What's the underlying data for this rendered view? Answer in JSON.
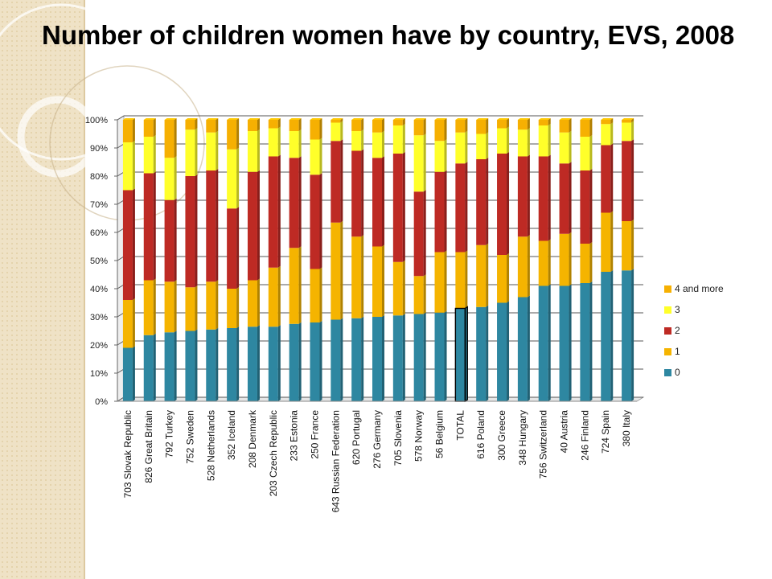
{
  "slide": {
    "title": "Number of children women have by country, EVS, 2008"
  },
  "colors": {
    "background": "#ffffff",
    "side_band": "#efe2c6",
    "series_0": "#2e87a1",
    "series_1": "#f5b400",
    "series_2": "#be2a24",
    "series_3": "#ffff2a",
    "series_4": "#f6b002",
    "gridline": "#555555"
  },
  "chart_data": {
    "type": "bar",
    "stacked": true,
    "percent_stacked": true,
    "title": "Number of children women have by country, EVS, 2008",
    "categories": [
      "703 Slovak Republic",
      "826 Great Britain",
      "792 Turkey",
      "752 Sweden",
      "528 Netherlands",
      "352 Iceland",
      "208 Denmark",
      "203 Czech Republic",
      "233 Estonia",
      "250 France",
      "643 Russian Federation",
      "620 Portugal",
      "276 Germany",
      "705 Slovenia",
      "578 Norway",
      "56 Belgium",
      "TOTAL",
      "616 Poland",
      "300 Greece",
      "348 Hungary",
      "756 Switzerland",
      "40 Austria",
      "246 Finland",
      "724 Spain",
      "380 Italy"
    ],
    "highlighted_category": "TOTAL",
    "series": [
      {
        "name": "0",
        "values": [
          19,
          23.5,
          24.5,
          25,
          25.5,
          26,
          26.5,
          26.5,
          27.5,
          28,
          29,
          29.5,
          30,
          30.5,
          31,
          31.5,
          33,
          33.5,
          35,
          37,
          41,
          41,
          42,
          46,
          46.5
        ]
      },
      {
        "name": "1",
        "values": [
          17,
          19.5,
          18,
          15.5,
          17,
          14,
          16.5,
          21,
          27,
          19,
          34.5,
          29,
          25,
          19,
          13.5,
          21.5,
          20,
          22,
          17,
          21.5,
          16,
          18.5,
          14,
          21,
          17.5
        ]
      },
      {
        "name": "2",
        "values": [
          39,
          38,
          29,
          39.5,
          39.5,
          28.5,
          38.5,
          39.5,
          32,
          33.5,
          29,
          30.5,
          31.5,
          38.5,
          30,
          28.5,
          31.5,
          30.5,
          36,
          28.5,
          30,
          25,
          26,
          24,
          28.5
        ]
      },
      {
        "name": "3",
        "values": [
          17,
          13,
          15,
          16.5,
          13.5,
          21,
          14.5,
          10,
          9.5,
          12.5,
          6.5,
          7,
          9,
          10,
          20,
          11,
          11,
          9,
          9,
          9.5,
          11,
          11,
          12,
          7.5,
          6.5
        ]
      },
      {
        "name": "4 and more",
        "values": [
          8,
          6,
          13.5,
          3.5,
          4.5,
          10.5,
          4,
          3,
          4,
          7,
          1,
          4,
          4.5,
          2,
          5.5,
          7.5,
          4.5,
          5,
          3,
          3.5,
          2,
          4.5,
          6,
          1.5,
          1
        ]
      }
    ],
    "legend_order": [
      "4 and more",
      "3",
      "2",
      "1",
      "0"
    ],
    "legend_position": "right",
    "ylim": [
      0,
      100
    ],
    "y_ticks": [
      "0%",
      "10%",
      "20%",
      "30%",
      "40%",
      "50%",
      "60%",
      "70%",
      "80%",
      "90%",
      "100%"
    ],
    "grid": true,
    "xlabel": "",
    "ylabel": ""
  }
}
